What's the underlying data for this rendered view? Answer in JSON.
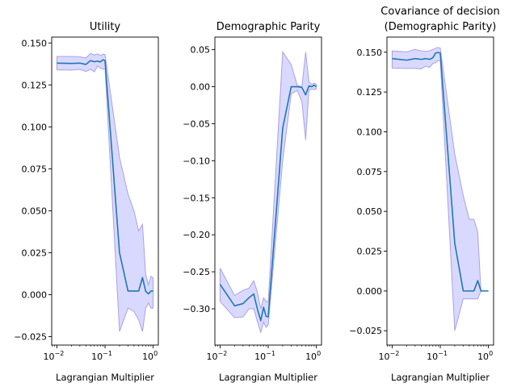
{
  "colors": {
    "line": "#1f77b4",
    "band_fill": "#0000ff",
    "band_edge": "#7f6fd0"
  },
  "chart_data": [
    {
      "type": "line",
      "title": "Utility",
      "title_lines": [
        "Utility"
      ],
      "xlabel": "Lagrangian Multiplier",
      "xscale": "log",
      "xlim": [
        0.0078,
        1.28
      ],
      "ylim": [
        -0.03,
        0.1535
      ],
      "xticks": [
        {
          "v": 0.01,
          "b": "10",
          "e": "−2"
        },
        {
          "v": 0.1,
          "b": "10",
          "e": "−1"
        },
        {
          "v": 1,
          "b": "10",
          "e": "0"
        }
      ],
      "yticks": [
        {
          "v": -0.025,
          "label": "−0.025"
        },
        {
          "v": 0.0,
          "label": "0.000"
        },
        {
          "v": 0.025,
          "label": "0.025"
        },
        {
          "v": 0.05,
          "label": "0.050"
        },
        {
          "v": 0.075,
          "label": "0.075"
        },
        {
          "v": 0.1,
          "label": "0.100"
        },
        {
          "v": 0.125,
          "label": "0.125"
        },
        {
          "v": 0.15,
          "label": "0.150"
        }
      ],
      "x": [
        0.01,
        0.02,
        0.03,
        0.04,
        0.05,
        0.06,
        0.07,
        0.08,
        0.09,
        0.1,
        0.2,
        0.3,
        0.4,
        0.5,
        0.6,
        0.7,
        0.8,
        0.9,
        1.0
      ],
      "series": [
        {
          "mean": [
            0.138,
            0.1378,
            0.138,
            0.1372,
            0.1395,
            0.1388,
            0.1392,
            0.1387,
            0.14,
            0.1395,
            0.025,
            0.0022,
            0.0022,
            0.0022,
            0.0102,
            0.002,
            0.0005,
            0.0022,
            0.0022
          ],
          "lower": [
            0.134,
            0.1338,
            0.1343,
            0.133,
            0.1343,
            0.1328,
            0.1362,
            0.135,
            0.1345,
            0.1345,
            -0.022,
            -0.008,
            -0.01,
            -0.015,
            -0.022,
            -0.008,
            -0.005,
            -0.008,
            -0.008
          ],
          "upper": [
            0.142,
            0.142,
            0.1418,
            0.141,
            0.1438,
            0.1428,
            0.1435,
            0.1425,
            0.1433,
            0.1432,
            0.082,
            0.06,
            0.05,
            0.038,
            0.042,
            0.012,
            0.006,
            0.011,
            0.01
          ]
        }
      ]
    },
    {
      "type": "line",
      "title": "Demographic Parity",
      "title_lines": [
        "Demographic Parity"
      ],
      "xlabel": "Lagrangian Multiplier",
      "xscale": "log",
      "xlim": [
        0.0078,
        1.28
      ],
      "ylim": [
        -0.349,
        0.067
      ],
      "xticks": [
        {
          "v": 0.01,
          "b": "10",
          "e": "−2"
        },
        {
          "v": 0.1,
          "b": "10",
          "e": "−1"
        },
        {
          "v": 1,
          "b": "10",
          "e": "0"
        }
      ],
      "yticks": [
        {
          "v": -0.3,
          "label": "−0.30"
        },
        {
          "v": -0.25,
          "label": "−0.25"
        },
        {
          "v": -0.2,
          "label": "−0.20"
        },
        {
          "v": -0.15,
          "label": "−0.15"
        },
        {
          "v": -0.1,
          "label": "−0.10"
        },
        {
          "v": -0.05,
          "label": "−0.05"
        },
        {
          "v": 0.0,
          "label": "0.00"
        },
        {
          "v": 0.05,
          "label": "0.05"
        }
      ],
      "x": [
        0.01,
        0.02,
        0.03,
        0.04,
        0.05,
        0.06,
        0.07,
        0.08,
        0.09,
        0.1,
        0.2,
        0.3,
        0.4,
        0.5,
        0.6,
        0.7,
        0.8,
        0.9,
        1.0
      ],
      "series": [
        {
          "mean": [
            -0.267,
            -0.296,
            -0.293,
            -0.285,
            -0.28,
            -0.301,
            -0.316,
            -0.298,
            -0.31,
            -0.311,
            -0.056,
            0.0,
            0.0,
            -0.001,
            -0.011,
            0.001,
            0.0,
            0.002,
            0.0
          ],
          "lower": [
            -0.29,
            -0.312,
            -0.311,
            -0.3,
            -0.3,
            -0.318,
            -0.332,
            -0.318,
            -0.325,
            -0.322,
            -0.1,
            -0.01,
            -0.005,
            -0.02,
            -0.072,
            -0.005,
            -0.003,
            -0.004,
            -0.003
          ],
          "upper": [
            -0.245,
            -0.282,
            -0.275,
            -0.272,
            -0.262,
            -0.278,
            -0.3,
            -0.285,
            -0.29,
            -0.29,
            0.047,
            0.03,
            0.002,
            0.0,
            0.047,
            0.007,
            0.003,
            0.005,
            0.003
          ]
        }
      ]
    },
    {
      "type": "line",
      "title": "Covariance of decision (Demographic Parity)",
      "title_lines": [
        "Covariance of decision",
        "(Demographic Parity)"
      ],
      "xlabel": "Lagrangian Multiplier",
      "xscale": "log",
      "xlim": [
        0.0078,
        1.28
      ],
      "ylim": [
        -0.034,
        0.1595
      ],
      "xticks": [
        {
          "v": 0.01,
          "b": "10",
          "e": "−2"
        },
        {
          "v": 0.1,
          "b": "10",
          "e": "−1"
        },
        {
          "v": 1,
          "b": "10",
          "e": "0"
        }
      ],
      "yticks": [
        {
          "v": -0.025,
          "label": "−0.025"
        },
        {
          "v": 0.0,
          "label": "0.000"
        },
        {
          "v": 0.025,
          "label": "0.025"
        },
        {
          "v": 0.05,
          "label": "0.050"
        },
        {
          "v": 0.075,
          "label": "0.075"
        },
        {
          "v": 0.1,
          "label": "0.100"
        },
        {
          "v": 0.125,
          "label": "0.125"
        },
        {
          "v": 0.15,
          "label": "0.150"
        }
      ],
      "x": [
        0.01,
        0.02,
        0.03,
        0.04,
        0.05,
        0.06,
        0.07,
        0.08,
        0.09,
        0.1,
        0.2,
        0.3,
        0.4,
        0.5,
        0.6,
        0.7,
        0.8,
        0.9,
        1.0
      ],
      "series": [
        {
          "mean": [
            0.146,
            0.145,
            0.146,
            0.1455,
            0.146,
            0.1455,
            0.1465,
            0.1495,
            0.1498,
            0.1495,
            0.03,
            0.0,
            0.0,
            0.0,
            0.0065,
            0.0,
            0.0,
            0.0,
            0.0
          ],
          "lower": [
            0.14,
            0.1398,
            0.1398,
            0.1395,
            0.1412,
            0.1405,
            0.1428,
            0.1435,
            0.1448,
            0.1445,
            -0.025,
            -0.005,
            -0.005,
            -0.005,
            -0.005,
            0.0,
            0.0,
            0.0,
            0.0
          ],
          "upper": [
            0.1508,
            0.1502,
            0.1518,
            0.1508,
            0.1505,
            0.1508,
            0.1518,
            0.1525,
            0.153,
            0.1525,
            0.086,
            0.06,
            0.045,
            0.045,
            0.037,
            0.0,
            0.0,
            0.0,
            0.0
          ]
        }
      ]
    }
  ]
}
